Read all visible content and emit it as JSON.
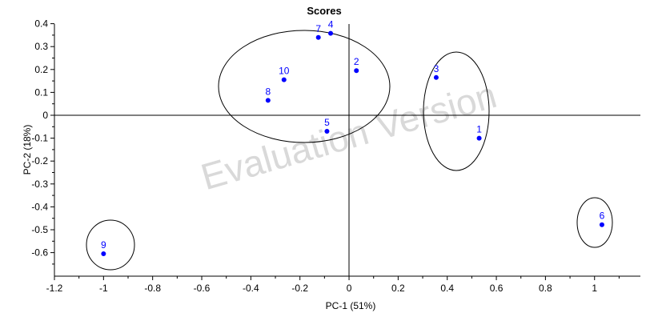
{
  "chart_data": {
    "type": "scatter",
    "title": "Scores",
    "xlabel": "PC-1 (51%)",
    "ylabel": "PC-2 (18%)",
    "xlim": [
      -1.2,
      1.2
    ],
    "ylim": [
      -0.7,
      0.4
    ],
    "xticks": [
      "-1.2",
      "-1",
      "-0.8",
      "-0.6",
      "-0.4",
      "-0.2",
      "0",
      "0.2",
      "0.4",
      "0.6",
      "0.8",
      "1"
    ],
    "yticks": [
      "0.4",
      "0.3",
      "0.2",
      "0.1",
      "0",
      "-0.1",
      "-0.2",
      "-0.3",
      "-0.4",
      "-0.5",
      "-0.6"
    ],
    "points": [
      {
        "label": "1",
        "x": 0.53,
        "y": -0.1
      },
      {
        "label": "2",
        "x": 0.03,
        "y": 0.195
      },
      {
        "label": "3",
        "x": 0.355,
        "y": 0.165
      },
      {
        "label": "4",
        "x": -0.075,
        "y": 0.358
      },
      {
        "label": "5",
        "x": -0.09,
        "y": -0.07
      },
      {
        "label": "6",
        "x": 1.03,
        "y": -0.478
      },
      {
        "label": "7",
        "x": -0.125,
        "y": 0.34
      },
      {
        "label": "8",
        "x": -0.33,
        "y": 0.065
      },
      {
        "label": "9",
        "x": -1.0,
        "y": -0.605
      },
      {
        "label": "10",
        "x": -0.265,
        "y": 0.155
      }
    ],
    "point_color": "#0000ff",
    "grid": false,
    "legend": "none",
    "watermark": "Evaluation Version"
  }
}
